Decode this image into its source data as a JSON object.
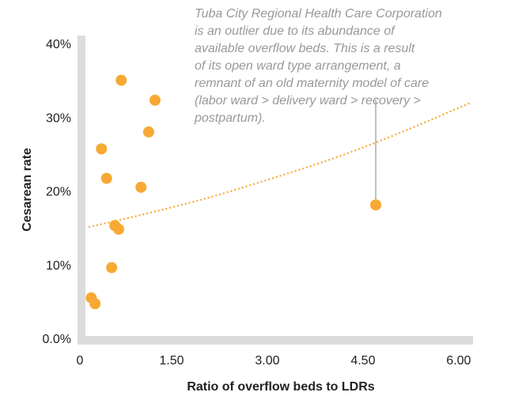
{
  "chart_data": {
    "type": "scatter",
    "xlabel": "Ratio of overflow beds to LDRs",
    "ylabel": "Cesarean rate",
    "annotation": [
      "Tuba City Regional Health Care Corporation",
      "is an outlier due to its abundance of",
      "available overflow beds. This is a result",
      "of its open ward type arrangement, a",
      "remnant of an old maternity model of care",
      "(labor ward > delivery ward > recovery >",
      "postpartum)."
    ],
    "series": [
      {
        "color": "#f7a934",
        "x": [
          0.71,
          1.24,
          1.14,
          0.4,
          0.48,
          1.02,
          0.61,
          0.67,
          0.56,
          0.24,
          0.3,
          4.7
        ],
        "values": [
          35.2,
          32.5,
          28.2,
          25.9,
          21.9,
          20.7,
          15.5,
          15.0,
          9.8,
          5.7,
          4.9,
          18.3
        ]
      }
    ],
    "trend": {
      "color": "#f7a934",
      "x": [
        0.2,
        1,
        2,
        3,
        4,
        5,
        6.2
      ],
      "values": [
        15.3,
        16.9,
        19.1,
        21.7,
        24.5,
        27.8,
        32.2
      ]
    },
    "xlim": [
      0,
      6.2
    ],
    "xticks": [
      0,
      {
        "value": 1.5,
        "label": "1.50"
      },
      {
        "value": 3,
        "label": "3.00"
      },
      {
        "value": 4.5,
        "label": "4.50"
      },
      {
        "value": 6,
        "label": "6.00"
      }
    ],
    "ylim": [
      -0.5,
      41.5
    ],
    "yticks": [
      {
        "value": 0,
        "label": "0.0%"
      },
      {
        "value": 10,
        "label": "10%"
      },
      {
        "value": 20,
        "label": "20%"
      },
      {
        "value": 30,
        "label": "30%"
      },
      {
        "value": 40,
        "label": "40%"
      }
    ]
  }
}
